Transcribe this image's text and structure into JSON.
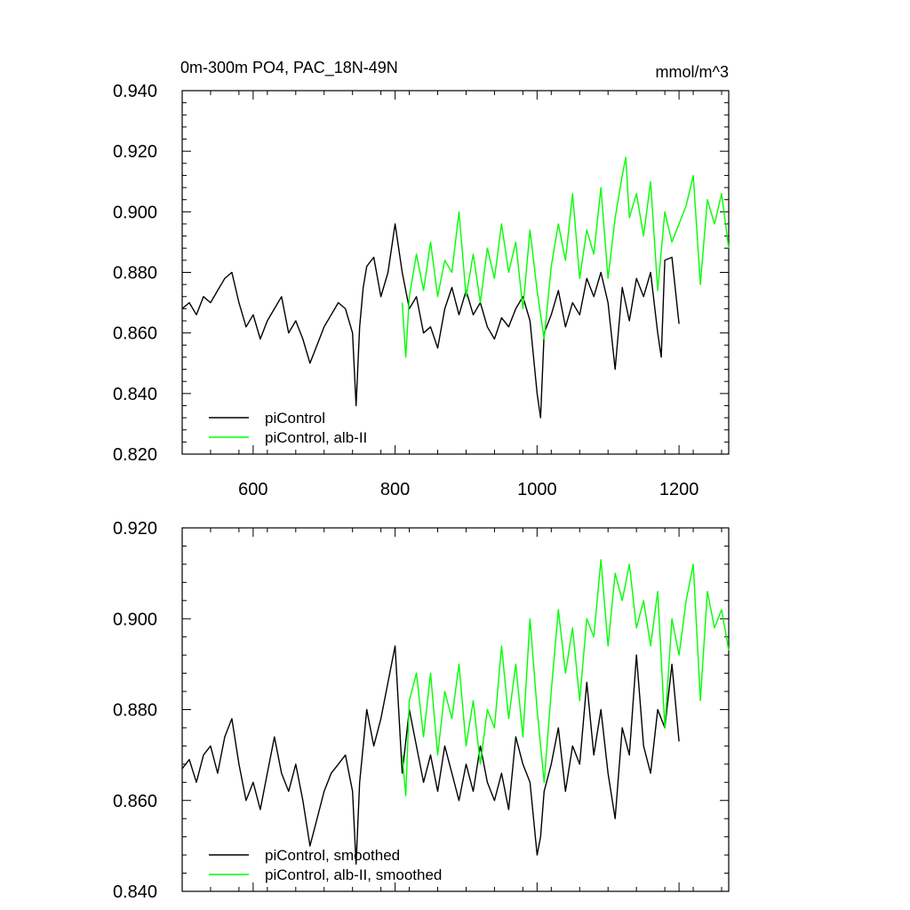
{
  "chart_data": [
    {
      "type": "line",
      "title": "0m-300m PO4, PAC_18N-49N",
      "units": "mmol/m^3",
      "xlim": [
        500,
        1270
      ],
      "ylim": [
        0.82,
        0.94
      ],
      "xticks": [
        600,
        800,
        1000,
        1200
      ],
      "xtick_labels": [
        "600",
        "800",
        "1000",
        "1200"
      ],
      "yticks": [
        0.82,
        0.84,
        0.86,
        0.88,
        0.9,
        0.92,
        0.94
      ],
      "ytick_labels": [
        "0.820",
        "0.840",
        "0.860",
        "0.880",
        "0.900",
        "0.920",
        "0.940"
      ],
      "grid": false,
      "legend_position": "bottom-left",
      "series": [
        {
          "name": "piControl",
          "color": "#000000",
          "x": [
            500,
            510,
            520,
            530,
            540,
            550,
            560,
            570,
            580,
            590,
            600,
            610,
            620,
            630,
            640,
            650,
            660,
            670,
            680,
            690,
            700,
            710,
            720,
            730,
            740,
            745,
            750,
            755,
            760,
            770,
            780,
            790,
            800,
            810,
            820,
            830,
            840,
            850,
            860,
            870,
            880,
            890,
            900,
            910,
            920,
            930,
            940,
            950,
            960,
            970,
            980,
            990,
            1000,
            1005,
            1010,
            1020,
            1030,
            1040,
            1050,
            1060,
            1070,
            1080,
            1090,
            1100,
            1110,
            1120,
            1130,
            1140,
            1150,
            1160,
            1170,
            1175,
            1180,
            1190,
            1200
          ],
          "y": [
            0.868,
            0.87,
            0.866,
            0.872,
            0.87,
            0.874,
            0.878,
            0.88,
            0.87,
            0.862,
            0.866,
            0.858,
            0.864,
            0.868,
            0.872,
            0.86,
            0.864,
            0.858,
            0.85,
            0.856,
            0.862,
            0.866,
            0.87,
            0.868,
            0.86,
            0.836,
            0.862,
            0.875,
            0.882,
            0.885,
            0.872,
            0.88,
            0.896,
            0.88,
            0.868,
            0.872,
            0.86,
            0.862,
            0.855,
            0.868,
            0.875,
            0.866,
            0.874,
            0.866,
            0.87,
            0.862,
            0.858,
            0.865,
            0.862,
            0.868,
            0.872,
            0.864,
            0.84,
            0.832,
            0.86,
            0.866,
            0.874,
            0.862,
            0.87,
            0.866,
            0.878,
            0.872,
            0.88,
            0.87,
            0.848,
            0.875,
            0.864,
            0.878,
            0.872,
            0.88,
            0.86,
            0.852,
            0.884,
            0.885,
            0.863
          ]
        },
        {
          "name": "piControl, alb-II",
          "color": "#00ff00",
          "x": [
            810,
            815,
            820,
            830,
            840,
            850,
            860,
            870,
            880,
            890,
            900,
            910,
            920,
            930,
            940,
            950,
            960,
            970,
            980,
            990,
            1000,
            1010,
            1020,
            1030,
            1040,
            1050,
            1060,
            1070,
            1080,
            1090,
            1100,
            1110,
            1120,
            1125,
            1130,
            1140,
            1150,
            1160,
            1170,
            1180,
            1190,
            1200,
            1210,
            1220,
            1230,
            1240,
            1250,
            1260,
            1270
          ],
          "y": [
            0.87,
            0.852,
            0.872,
            0.886,
            0.874,
            0.89,
            0.872,
            0.884,
            0.88,
            0.9,
            0.872,
            0.886,
            0.87,
            0.888,
            0.878,
            0.896,
            0.88,
            0.89,
            0.868,
            0.894,
            0.874,
            0.858,
            0.882,
            0.896,
            0.884,
            0.906,
            0.878,
            0.894,
            0.886,
            0.908,
            0.878,
            0.898,
            0.912,
            0.918,
            0.898,
            0.906,
            0.892,
            0.91,
            0.874,
            0.9,
            0.89,
            0.896,
            0.902,
            0.912,
            0.876,
            0.904,
            0.896,
            0.906,
            0.888
          ]
        }
      ]
    },
    {
      "type": "line",
      "xlim": [
        500,
        1270
      ],
      "ylim": [
        0.84,
        0.92
      ],
      "xticks": [
        600,
        800,
        1000,
        1200
      ],
      "yticks": [
        0.84,
        0.86,
        0.88,
        0.9,
        0.92
      ],
      "ytick_labels": [
        "0.840",
        "0.860",
        "0.880",
        "0.900",
        "0.920"
      ],
      "grid": false,
      "legend_position": "bottom-left",
      "series": [
        {
          "name": "piControl, smoothed",
          "color": "#000000",
          "x": [
            500,
            510,
            520,
            530,
            540,
            550,
            560,
            570,
            580,
            590,
            600,
            610,
            620,
            630,
            640,
            650,
            660,
            670,
            680,
            690,
            700,
            710,
            720,
            730,
            740,
            745,
            750,
            760,
            770,
            780,
            790,
            800,
            810,
            820,
            830,
            840,
            850,
            860,
            870,
            880,
            890,
            900,
            910,
            920,
            930,
            940,
            950,
            960,
            970,
            980,
            990,
            1000,
            1005,
            1010,
            1020,
            1030,
            1040,
            1050,
            1060,
            1070,
            1080,
            1090,
            1100,
            1110,
            1120,
            1130,
            1140,
            1150,
            1160,
            1170,
            1180,
            1190,
            1200
          ],
          "y": [
            0.867,
            0.869,
            0.864,
            0.87,
            0.872,
            0.866,
            0.874,
            0.878,
            0.868,
            0.86,
            0.864,
            0.858,
            0.866,
            0.874,
            0.866,
            0.862,
            0.868,
            0.86,
            0.85,
            0.856,
            0.862,
            0.866,
            0.868,
            0.87,
            0.862,
            0.846,
            0.864,
            0.88,
            0.872,
            0.878,
            0.886,
            0.894,
            0.866,
            0.88,
            0.872,
            0.864,
            0.87,
            0.862,
            0.872,
            0.866,
            0.86,
            0.868,
            0.862,
            0.872,
            0.864,
            0.86,
            0.866,
            0.858,
            0.874,
            0.868,
            0.864,
            0.848,
            0.852,
            0.862,
            0.868,
            0.876,
            0.862,
            0.872,
            0.868,
            0.886,
            0.87,
            0.88,
            0.866,
            0.856,
            0.876,
            0.87,
            0.892,
            0.872,
            0.866,
            0.88,
            0.876,
            0.89,
            0.873
          ]
        },
        {
          "name": "piControl, alb-II, smoothed",
          "color": "#00ff00",
          "x": [
            810,
            815,
            820,
            830,
            840,
            850,
            860,
            870,
            880,
            890,
            900,
            910,
            920,
            930,
            940,
            950,
            960,
            970,
            980,
            990,
            1000,
            1010,
            1020,
            1030,
            1040,
            1050,
            1060,
            1070,
            1080,
            1090,
            1100,
            1110,
            1120,
            1130,
            1140,
            1150,
            1160,
            1170,
            1180,
            1190,
            1200,
            1210,
            1220,
            1230,
            1240,
            1250,
            1260,
            1270
          ],
          "y": [
            0.87,
            0.861,
            0.882,
            0.888,
            0.874,
            0.888,
            0.87,
            0.884,
            0.878,
            0.89,
            0.872,
            0.882,
            0.868,
            0.88,
            0.876,
            0.894,
            0.878,
            0.89,
            0.874,
            0.9,
            0.88,
            0.864,
            0.884,
            0.902,
            0.888,
            0.898,
            0.882,
            0.9,
            0.896,
            0.913,
            0.894,
            0.91,
            0.904,
            0.912,
            0.898,
            0.904,
            0.894,
            0.906,
            0.876,
            0.9,
            0.892,
            0.904,
            0.912,
            0.882,
            0.906,
            0.898,
            0.902,
            0.893
          ]
        }
      ]
    }
  ]
}
